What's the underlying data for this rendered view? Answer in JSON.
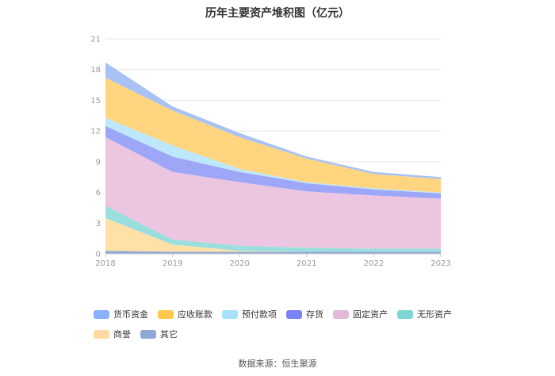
{
  "title": "历年主要资产堆积图（亿元）",
  "source": "数据来源：恒生聚源",
  "chart_data": {
    "type": "area",
    "stacked": true,
    "categories": [
      "2018",
      "2019",
      "2020",
      "2021",
      "2022",
      "2023"
    ],
    "ylim": [
      0,
      21
    ],
    "yticks": [
      "0",
      "3",
      "6",
      "9",
      "12",
      "15",
      "18",
      "21"
    ],
    "grid": true,
    "legend_position": "bottom",
    "series": [
      {
        "name": "其它",
        "color": "#8fa9d6",
        "values": [
          0.3,
          0.2,
          0.2,
          0.2,
          0.2,
          0.2
        ]
      },
      {
        "name": "商誉",
        "color": "#ffe0a6",
        "values": [
          3.2,
          0.7,
          0.1,
          0.0,
          0.0,
          0.0
        ]
      },
      {
        "name": "无形资产",
        "color": "#9adfdd",
        "values": [
          1.2,
          0.5,
          0.5,
          0.4,
          0.3,
          0.3
        ]
      },
      {
        "name": "固定资产",
        "color": "#ecc6e0",
        "values": [
          6.7,
          6.6,
          6.2,
          5.5,
          5.2,
          4.9
        ]
      },
      {
        "name": "存货",
        "color": "#9ea7f7",
        "values": [
          1.1,
          1.5,
          1.0,
          0.8,
          0.6,
          0.5
        ]
      },
      {
        "name": "预付款项",
        "color": "#bde7fa",
        "values": [
          0.8,
          1.1,
          0.3,
          0.1,
          0.1,
          0.1
        ]
      },
      {
        "name": "应收账款",
        "color": "#ffd57f",
        "values": [
          3.9,
          3.4,
          3.1,
          2.3,
          1.4,
          1.3
        ]
      },
      {
        "name": "货币资金",
        "color": "#a9c2f5",
        "values": [
          1.5,
          0.4,
          0.4,
          0.2,
          0.2,
          0.2
        ]
      }
    ],
    "legend": [
      {
        "name": "货币资金",
        "color": "#8ab0fb"
      },
      {
        "name": "应收账款",
        "color": "#ffc94d"
      },
      {
        "name": "预付款项",
        "color": "#a7e1fa"
      },
      {
        "name": "存货",
        "color": "#7b82f5"
      },
      {
        "name": "固定资产",
        "color": "#e3b8d9"
      },
      {
        "name": "无形资产",
        "color": "#7fd6d4"
      },
      {
        "name": "商誉",
        "color": "#ffd9a0"
      },
      {
        "name": "其它",
        "color": "#8fa9d6"
      }
    ]
  }
}
